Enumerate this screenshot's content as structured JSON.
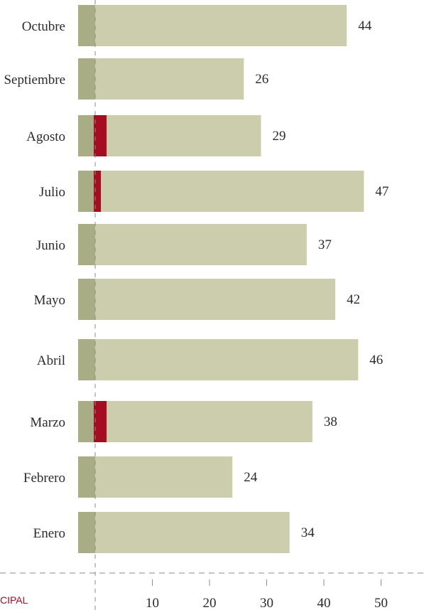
{
  "colors": {
    "bar": "#cbcdad",
    "bar_base": "#a9ad85",
    "highlight": "#a50e22",
    "axis_dash": "#8a8a8a",
    "text": "#2b2b2b",
    "footer": "#a80d22"
  },
  "footer": {
    "text": "CIPAL"
  },
  "chart_data": {
    "type": "bar",
    "orientation": "horizontal",
    "categories": [
      "Octubre",
      "Septiembre",
      "Agosto",
      "Julio",
      "Junio",
      "Mayo",
      "Abril",
      "Marzo",
      "Febrero",
      "Enero"
    ],
    "series": [
      {
        "values": [
          44,
          26,
          29,
          47,
          37,
          42,
          46,
          38,
          24,
          34
        ]
      },
      {
        "values": [
          0,
          0,
          2,
          1,
          0,
          0,
          0,
          2,
          0,
          0
        ]
      }
    ],
    "xlim": [
      -3,
      56
    ],
    "xticks": [
      10,
      20,
      30,
      40,
      50
    ],
    "grid": false
  }
}
